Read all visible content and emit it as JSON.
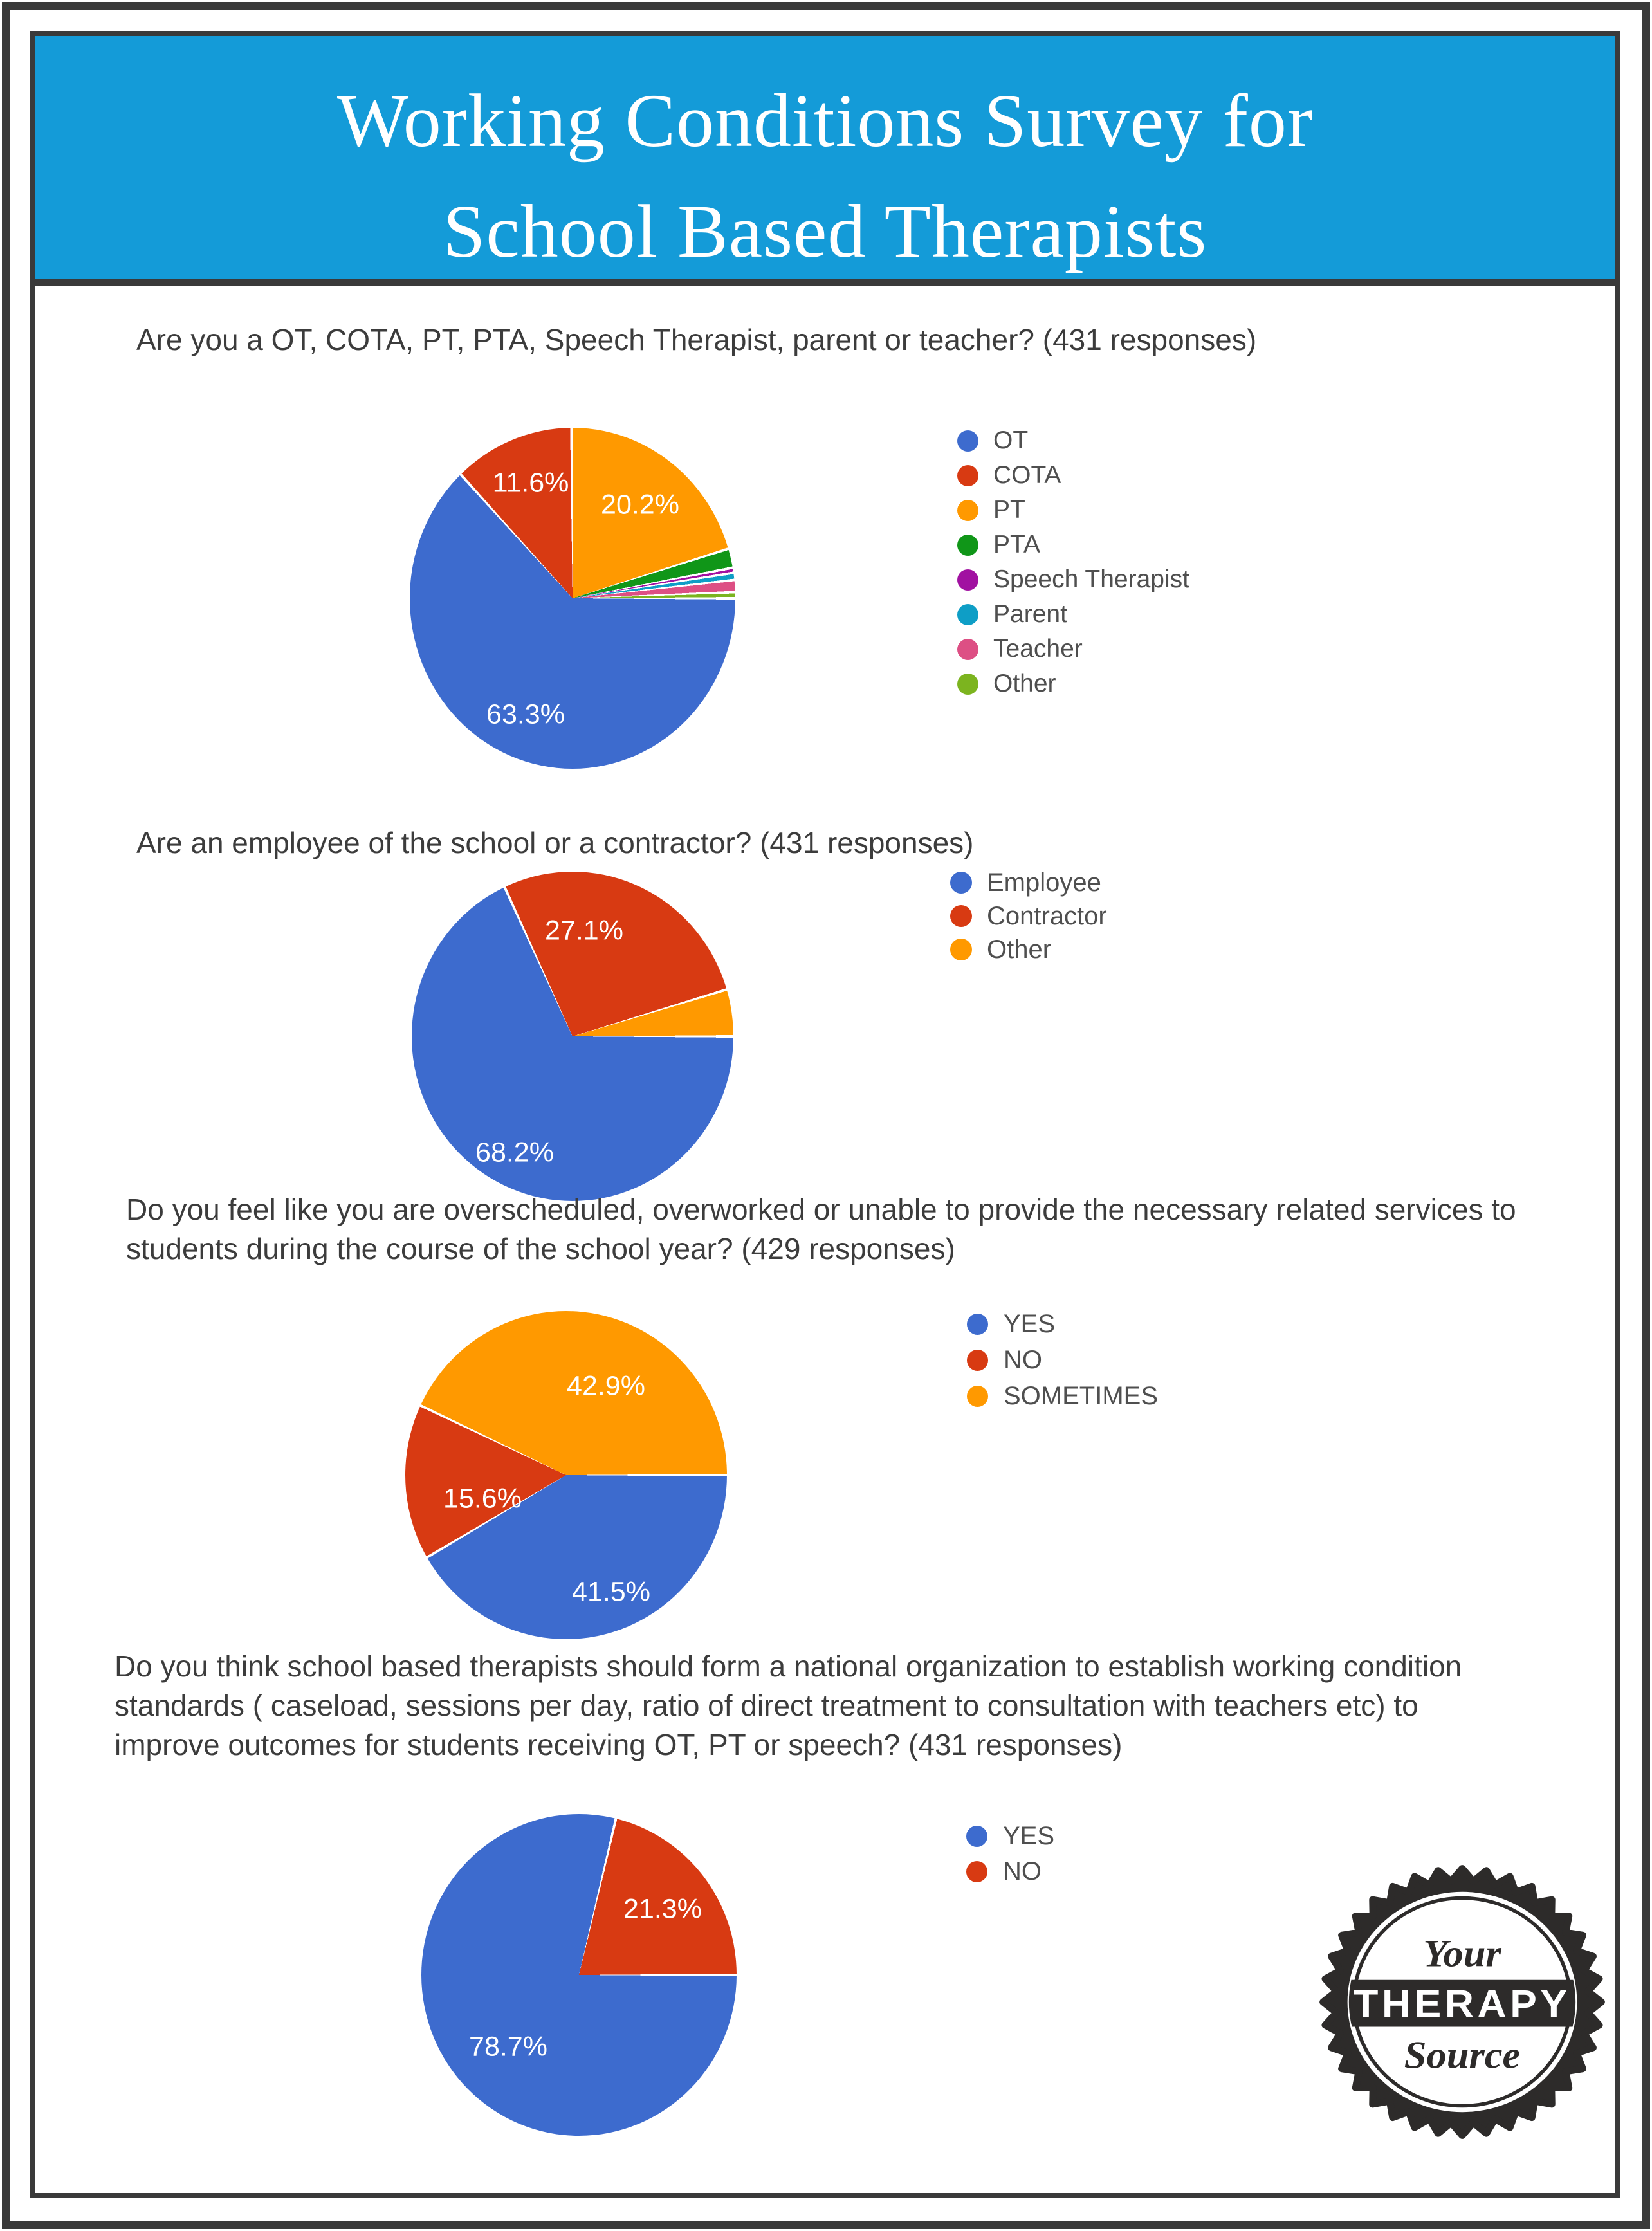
{
  "banner": {
    "title_line1": "Working Conditions Survey for",
    "title_line2": "School Based Therapists"
  },
  "chart_data": [
    {
      "type": "pie",
      "title": "Are you a OT, COTA, PT, PTA, Speech Therapist, parent or teacher? (431 responses)",
      "labels": [
        "OT",
        "COTA",
        "PT",
        "PTA",
        "Speech Therapist",
        "Parent",
        "Teacher",
        "Other"
      ],
      "values": [
        63.3,
        11.6,
        20.2,
        1.9,
        0.5,
        0.7,
        1.2,
        0.6
      ],
      "colors": [
        "#3D6BCE",
        "#D83A12",
        "#FF9900",
        "#109618",
        "#A111A1",
        "#0E9EC6",
        "#DD4F84",
        "#7CB41F"
      ],
      "slice_labels": [
        "11.6%",
        "20.2%",
        "63.3%"
      ],
      "legend_position": "right",
      "start_angle": "3-oclock-clockwise"
    },
    {
      "type": "pie",
      "title": "Are an employee of the school or a contractor? (431 responses)",
      "labels": [
        "Employee",
        "Contractor",
        "Other"
      ],
      "values": [
        68.2,
        27.1,
        4.7
      ],
      "colors": [
        "#3D6BCE",
        "#D83A12",
        "#FF9900"
      ],
      "slice_labels": [
        "27.1%",
        "68.2%"
      ],
      "legend_position": "right",
      "start_angle": "3-oclock-clockwise"
    },
    {
      "type": "pie",
      "title": "Do you feel like you are overscheduled, overworked or unable to provide the necessary related services to students during the course of the school year? (429 responses)",
      "labels": [
        "YES",
        "NO",
        "SOMETIMES"
      ],
      "values": [
        41.5,
        15.6,
        42.9
      ],
      "colors": [
        "#3D6BCE",
        "#D83A12",
        "#FF9900"
      ],
      "slice_labels": [
        "42.9%",
        "15.6%",
        "41.5%"
      ],
      "legend_position": "right",
      "start_angle": "3-oclock-clockwise"
    },
    {
      "type": "pie",
      "title": "Do you think school based therapists should form a national organization to establish working condition standards ( caseload, sessions per day, ratio of direct treatment to consultation with teachers etc) to improve outcomes for students receiving OT, PT or speech? (431 responses)",
      "labels": [
        "YES",
        "NO"
      ],
      "values": [
        78.7,
        21.3
      ],
      "colors": [
        "#3D6BCE",
        "#D83A12"
      ],
      "slice_labels": [
        "21.3%",
        "78.7%"
      ],
      "legend_position": "right",
      "start_angle": "3-oclock-clockwise"
    }
  ],
  "logo": {
    "top": "Your",
    "middle": "THERAPY",
    "bottom": "Source"
  },
  "style": {
    "banner_color": "#149bd8",
    "frame_color": "#3a3a3a",
    "badge_color": "#2d2b2a"
  }
}
